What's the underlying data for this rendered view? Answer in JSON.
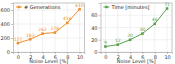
{
  "chart_data": [
    {
      "type": "line",
      "x": [
        0,
        2,
        4,
        6,
        8,
        10
      ],
      "series": [
        {
          "name": "# Generations",
          "color": "#f28e2b",
          "marker": "square",
          "values": [
            127,
            182,
            262,
            278,
            416,
            610
          ]
        }
      ],
      "xlabel": "Noise Level [%]",
      "xlim": [
        -0.8,
        10.8
      ],
      "xticks": [
        0,
        2,
        4,
        6,
        8,
        10
      ],
      "ylim": [
        0,
        700
      ],
      "yticks": [
        0,
        200,
        400,
        600
      ],
      "grid": true,
      "legend": "upper left",
      "data_labels": true
    },
    {
      "type": "line",
      "x": [
        0,
        2,
        4,
        6,
        8,
        10
      ],
      "series": [
        {
          "name": "Time [minutes]",
          "color": "#59a14f",
          "marker": "square",
          "values": [
            9,
            12,
            20,
            30,
            46,
            71
          ]
        }
      ],
      "xlabel": "Noise Level [%]",
      "xlim": [
        -0.8,
        10.8
      ],
      "xticks": [
        0,
        2,
        4,
        6,
        8,
        10
      ],
      "ylim": [
        0,
        80
      ],
      "yticks": [
        0,
        20,
        40,
        60
      ],
      "grid": true,
      "legend": "upper left",
      "data_labels": true
    }
  ]
}
